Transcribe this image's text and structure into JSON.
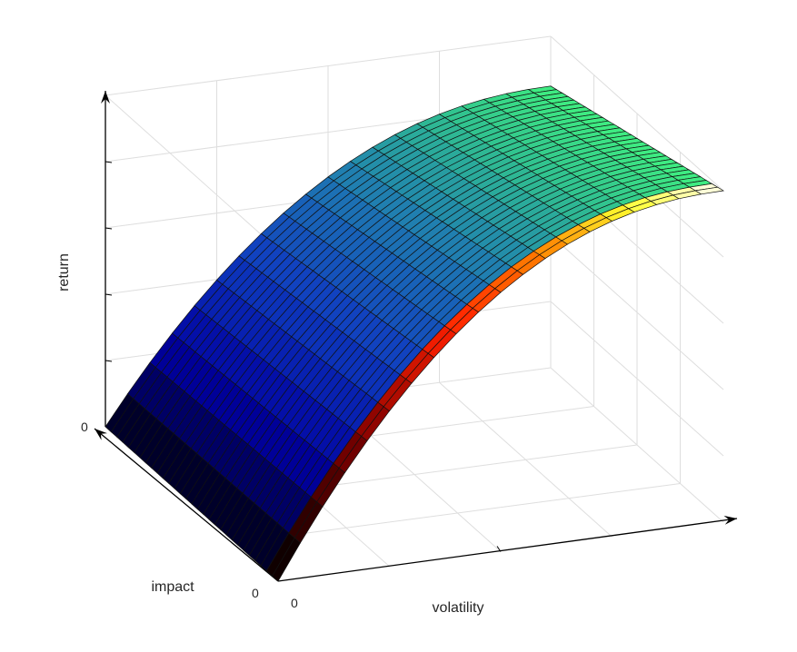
{
  "chart_data": {
    "type": "surface",
    "title": "",
    "xlabel": "volatility",
    "ylabel": "impact",
    "zlabel": "return",
    "x_ticks": [
      "0"
    ],
    "y_ticks": [
      "0"
    ],
    "z_ticks": [
      "0"
    ],
    "grid": true,
    "box": "open-with-back-planes",
    "surface_shape": "concave increasing in volatility, saturating; wedge to zero at origin",
    "colormap": {
      "main_face": [
        "#000000",
        "#0000a0",
        "#1040c0",
        "#2080b0",
        "#30c090",
        "#40f080"
      ],
      "front_edge_face": [
        "#000000",
        "#800000",
        "#ff2000",
        "#ff8000",
        "#ffff30",
        "#fffff0"
      ]
    }
  }
}
